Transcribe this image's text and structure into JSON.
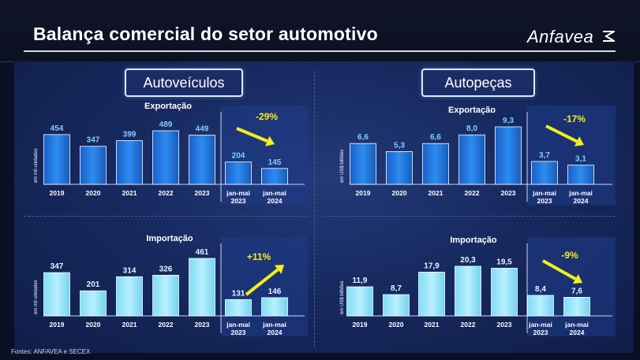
{
  "page": {
    "title": "Balança comercial do setor automotivo",
    "logo_text": "Anfavea",
    "source": "Fontes: ANFAVEA e SECEX"
  },
  "sections": {
    "left": "Autoveículos",
    "right": "Autopeças"
  },
  "chart_data": [
    {
      "id": "auto-export",
      "type": "bar",
      "title": "Exportação",
      "ylabel": "em mil unidades",
      "categories": [
        [
          "2019"
        ],
        [
          "2020"
        ],
        [
          "2021"
        ],
        [
          "2022"
        ],
        [
          "2023"
        ],
        [
          "jan-mai",
          "2023"
        ],
        [
          "jan-mai",
          "2024"
        ]
      ],
      "values": [
        454,
        347,
        399,
        489,
        449,
        204,
        145
      ],
      "labels": [
        "454",
        "347",
        "399",
        "489",
        "449",
        "204",
        "145"
      ],
      "ylim": [
        0,
        489
      ],
      "annotation": "-29%",
      "arrow": "down",
      "style": "dark"
    },
    {
      "id": "parts-export",
      "type": "bar",
      "title": "Exportação",
      "ylabel": "em US$ bilhões",
      "categories": [
        [
          "2019"
        ],
        [
          "2020"
        ],
        [
          "2021"
        ],
        [
          "2022"
        ],
        [
          "2023"
        ],
        [
          "jan-mai",
          "2023"
        ],
        [
          "jan-mai",
          "2024"
        ]
      ],
      "values": [
        6.6,
        5.3,
        6.6,
        8.0,
        9.3,
        3.7,
        3.1
      ],
      "labels": [
        "6,6",
        "5,3",
        "6,6",
        "8,0",
        "9,3",
        "3,7",
        "3,1"
      ],
      "ylim": [
        0,
        9.3
      ],
      "annotation": "-17%",
      "arrow": "down",
      "style": "dark"
    },
    {
      "id": "auto-import",
      "type": "bar",
      "title": "Importação",
      "ylabel": "em mil unidades",
      "categories": [
        [
          "2019"
        ],
        [
          "2020"
        ],
        [
          "2021"
        ],
        [
          "2022"
        ],
        [
          "2023"
        ],
        [
          "jan-mai",
          "2023"
        ],
        [
          "jan-mai",
          "2024"
        ]
      ],
      "values": [
        347,
        201,
        314,
        326,
        461,
        131,
        146
      ],
      "labels": [
        "347",
        "201",
        "314",
        "326",
        "461",
        "131",
        "146"
      ],
      "ylim": [
        0,
        461
      ],
      "annotation": "+11%",
      "arrow": "up",
      "style": "light"
    },
    {
      "id": "parts-import",
      "type": "bar",
      "title": "Importação",
      "ylabel": "em US$ bilhões",
      "categories": [
        [
          "2019"
        ],
        [
          "2020"
        ],
        [
          "2021"
        ],
        [
          "2022"
        ],
        [
          "2023"
        ],
        [
          "jan-mai",
          "2023"
        ],
        [
          "jan-mai",
          "2024"
        ]
      ],
      "values": [
        11.9,
        8.7,
        17.9,
        20.3,
        19.5,
        8.4,
        7.6
      ],
      "labels": [
        "11,9",
        "8,7",
        "17,9",
        "20,3",
        "19,5",
        "8,4",
        "7,6"
      ],
      "ylim": [
        0,
        20.3
      ],
      "annotation": "-9%",
      "arrow": "down",
      "style": "light"
    }
  ]
}
